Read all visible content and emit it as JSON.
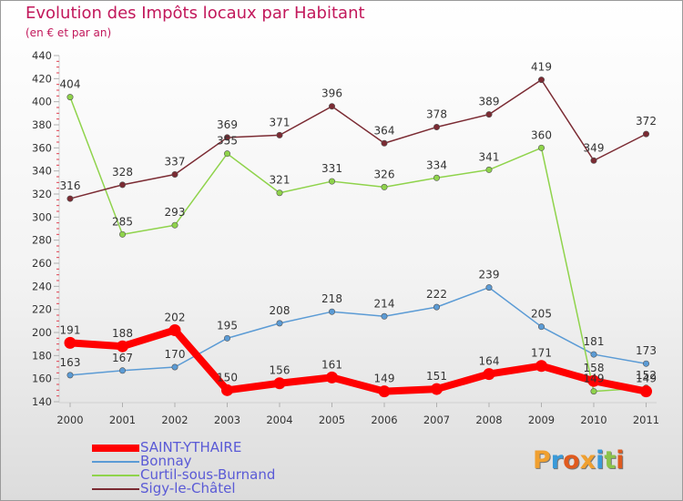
{
  "title": "Evolution des Impôts locaux par Habitant",
  "subtitle": "(en € et par an)",
  "logo": {
    "text": "Proxiti",
    "letters": [
      {
        "ch": "P",
        "color": "#f0a030"
      },
      {
        "ch": "r",
        "color": "#3a9ad9"
      },
      {
        "ch": "o",
        "color": "#e05a1e"
      },
      {
        "ch": "x",
        "color": "#f0a030"
      },
      {
        "ch": "i",
        "color": "#3a9ad9"
      },
      {
        "ch": "t",
        "color": "#8bc34a"
      },
      {
        "ch": "i",
        "color": "#e05a1e"
      }
    ]
  },
  "chart_data": {
    "type": "line",
    "title": "Evolution des Impôts locaux par Habitant",
    "subtitle": "(en € et par an)",
    "x": [
      "2000",
      "2001",
      "2002",
      "2003",
      "2004",
      "2005",
      "2006",
      "2007",
      "2008",
      "2009",
      "2010",
      "2011"
    ],
    "ylim": [
      140,
      440
    ],
    "yticks": [
      "140",
      "160",
      "180",
      "200",
      "220",
      "240",
      "260",
      "280",
      "300",
      "320",
      "340",
      "360",
      "380",
      "400",
      "420",
      "440"
    ],
    "grid": false,
    "legend_position": "bottom-left",
    "series": [
      {
        "name": "SAINT-YTHAIRE",
        "color": "#ff0000",
        "emphasis": true,
        "values": [
          191,
          188,
          202,
          150,
          156,
          161,
          149,
          151,
          164,
          171,
          158,
          149
        ],
        "labels": [
          "191",
          "188",
          "202",
          "150",
          "156",
          "161",
          "149",
          "151",
          "164",
          "171",
          "158",
          "149"
        ]
      },
      {
        "name": "Bonnay",
        "color": "#5b9bd5",
        "emphasis": false,
        "values": [
          163,
          167,
          170,
          195,
          208,
          218,
          214,
          222,
          239,
          205,
          181,
          173
        ],
        "labels": [
          "163",
          "167",
          "170",
          "195",
          "208",
          "218",
          "214",
          "222",
          "239",
          "205",
          "181",
          "173"
        ]
      },
      {
        "name": "Curtil-sous-Burnand",
        "color": "#8fd34b",
        "emphasis": false,
        "values": [
          404,
          285,
          293,
          355,
          321,
          331,
          326,
          334,
          341,
          360,
          149,
          152
        ],
        "labels": [
          "404",
          "285",
          "293",
          "355",
          "321",
          "331",
          "326",
          "334",
          "341",
          "360",
          "149",
          "152"
        ]
      },
      {
        "name": "Sigy-le-Châtel",
        "color": "#7b2b33",
        "emphasis": false,
        "values": [
          316,
          328,
          337,
          369,
          371,
          396,
          364,
          378,
          389,
          419,
          349,
          372
        ],
        "labels": [
          "316",
          "328",
          "337",
          "369",
          "371",
          "396",
          "364",
          "378",
          "389",
          "419",
          "349",
          "372"
        ]
      }
    ]
  }
}
